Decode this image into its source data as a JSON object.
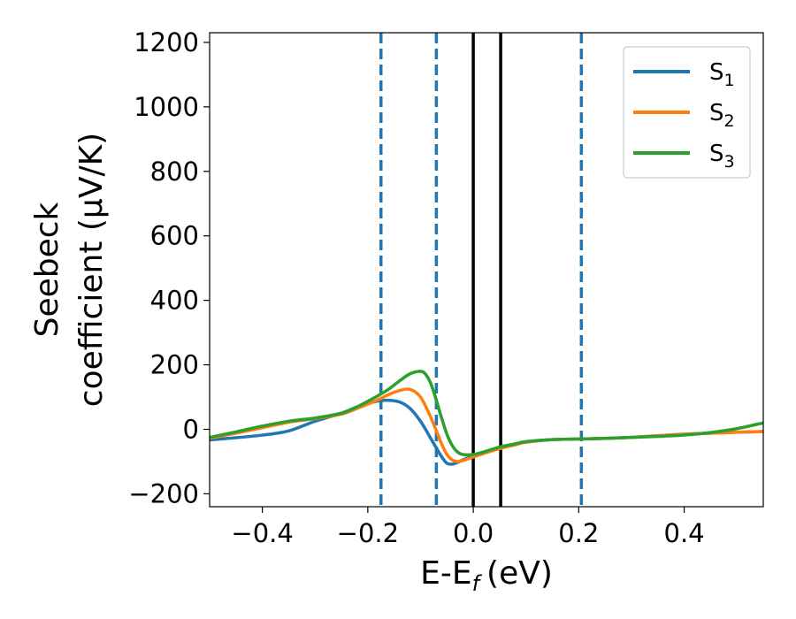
{
  "chart_data": {
    "type": "line",
    "xlabel": "E-E",
    "xlabel_sub": "f",
    "xlabel_unit": "(eV)",
    "ylabel_line1": "Seebeck",
    "ylabel_line2": "coefficient  (μV/K)",
    "xlim": [
      -0.5,
      0.55
    ],
    "ylim": [
      -240,
      1230
    ],
    "xticks": [
      -0.4,
      -0.2,
      0.0,
      0.2,
      0.4
    ],
    "xtick_labels": [
      "−0.4",
      "−0.2",
      "0.0",
      "0.2",
      "0.4"
    ],
    "yticks": [
      -200,
      0,
      200,
      400,
      600,
      800,
      1000,
      1200
    ],
    "ytick_labels": [
      "−200",
      "0",
      "200",
      "400",
      "600",
      "800",
      "1000",
      "1200"
    ],
    "grid": false,
    "legend_position": "top-right",
    "series": [
      {
        "name": "S",
        "sub": "1",
        "color": "#1f77b4",
        "x": [
          -0.5,
          -0.45,
          -0.4,
          -0.35,
          -0.3,
          -0.25,
          -0.22,
          -0.2,
          -0.18,
          -0.16,
          -0.14,
          -0.12,
          -0.1,
          -0.08,
          -0.06,
          -0.05,
          -0.04,
          -0.03,
          -0.02,
          0.0,
          0.02,
          0.05,
          0.08,
          0.1,
          0.15,
          0.2,
          0.25,
          0.3,
          0.35,
          0.4,
          0.45,
          0.5,
          0.55
        ],
        "y": [
          -33,
          -26,
          -18,
          -5,
          25,
          50,
          70,
          80,
          88,
          90,
          85,
          65,
          25,
          -30,
          -85,
          -105,
          -108,
          -103,
          -95,
          -82,
          -72,
          -58,
          -47,
          -40,
          -32,
          -30,
          -28,
          -25,
          -20,
          -15,
          -12,
          -9,
          -7
        ]
      },
      {
        "name": "S",
        "sub": "2",
        "color": "#ff7f0e",
        "x": [
          -0.5,
          -0.45,
          -0.4,
          -0.35,
          -0.3,
          -0.25,
          -0.22,
          -0.2,
          -0.18,
          -0.16,
          -0.14,
          -0.12,
          -0.1,
          -0.08,
          -0.06,
          -0.05,
          -0.04,
          -0.03,
          -0.02,
          0.0,
          0.02,
          0.05,
          0.08,
          0.1,
          0.15,
          0.2,
          0.25,
          0.3,
          0.35,
          0.4,
          0.45,
          0.5,
          0.55
        ],
        "y": [
          -28,
          -12,
          5,
          22,
          33,
          47,
          65,
          78,
          92,
          108,
          120,
          124,
          100,
          35,
          -45,
          -78,
          -95,
          -100,
          -97,
          -86,
          -75,
          -60,
          -48,
          -40,
          -32,
          -30,
          -28,
          -25,
          -20,
          -15,
          -12,
          -9,
          -7
        ]
      },
      {
        "name": "S",
        "sub": "3",
        "color": "#2ca02c",
        "x": [
          -0.5,
          -0.45,
          -0.4,
          -0.35,
          -0.3,
          -0.25,
          -0.22,
          -0.2,
          -0.18,
          -0.16,
          -0.14,
          -0.12,
          -0.1,
          -0.09,
          -0.08,
          -0.07,
          -0.06,
          -0.05,
          -0.04,
          -0.03,
          -0.02,
          0.0,
          0.02,
          0.05,
          0.08,
          0.1,
          0.15,
          0.2,
          0.25,
          0.3,
          0.35,
          0.4,
          0.45,
          0.5,
          0.55
        ],
        "y": [
          -25,
          -8,
          10,
          25,
          35,
          50,
          70,
          87,
          105,
          125,
          150,
          172,
          180,
          170,
          140,
          90,
          35,
          -15,
          -50,
          -70,
          -78,
          -78,
          -70,
          -55,
          -45,
          -38,
          -32,
          -30,
          -28,
          -25,
          -22,
          -18,
          -10,
          2,
          20
        ]
      }
    ],
    "vlines": [
      {
        "x": -0.175,
        "style": "dashed",
        "color": "#1f77b4"
      },
      {
        "x": -0.07,
        "style": "dashed",
        "color": "#1f77b4"
      },
      {
        "x": 0.0,
        "style": "solid",
        "color": "#000000"
      },
      {
        "x": 0.052,
        "style": "solid",
        "color": "#000000"
      },
      {
        "x": 0.205,
        "style": "dashed",
        "color": "#1f77b4"
      }
    ]
  }
}
